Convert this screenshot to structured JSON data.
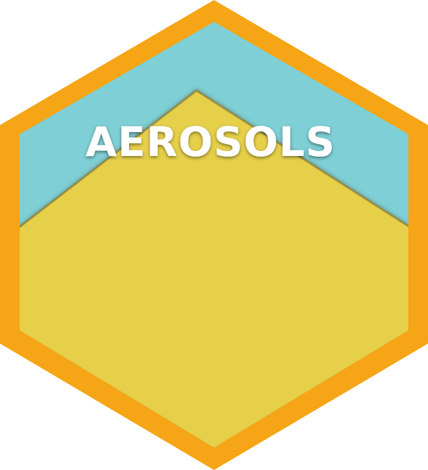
{
  "logo": {
    "title": "AEROSOLS"
  },
  "colors": {
    "outer_border": "#F5A515",
    "sky": "#7ECFD6",
    "ground": "#E6CF4A",
    "ridge_shadow": "#8A7A2C",
    "text": "#FFFFFF"
  },
  "icons": {
    "hexagon": "hexagon-badge-icon",
    "mountain": "mountain-icon"
  }
}
